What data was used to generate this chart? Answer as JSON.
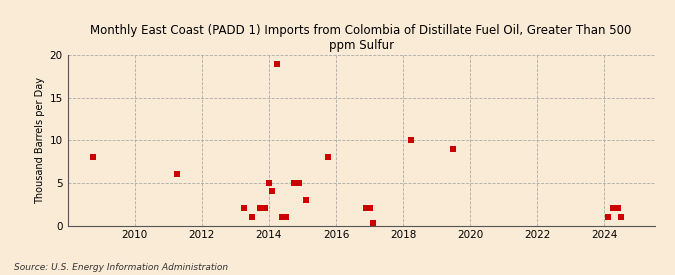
{
  "title": "Monthly East Coast (PADD 1) Imports from Colombia of Distillate Fuel Oil, Greater Than 500\nppm Sulfur",
  "ylabel": "Thousand Barrels per Day",
  "source": "Source: U.S. Energy Information Administration",
  "background_color": "#faebd7",
  "plot_bg_color": "#faebd7",
  "marker_color": "#cc0000",
  "ylim": [
    0,
    20
  ],
  "yticks": [
    0,
    5,
    10,
    15,
    20
  ],
  "xlim": [
    2008.0,
    2025.5
  ],
  "xticks": [
    2010,
    2012,
    2014,
    2016,
    2018,
    2020,
    2022,
    2024
  ],
  "data_points": [
    [
      2008.75,
      8
    ],
    [
      2011.25,
      6
    ],
    [
      2013.25,
      2
    ],
    [
      2013.5,
      1
    ],
    [
      2013.75,
      2
    ],
    [
      2013.9,
      2
    ],
    [
      2014.0,
      5
    ],
    [
      2014.1,
      4
    ],
    [
      2014.25,
      19
    ],
    [
      2014.4,
      1
    ],
    [
      2014.5,
      1
    ],
    [
      2014.75,
      5
    ],
    [
      2014.9,
      5
    ],
    [
      2015.1,
      3
    ],
    [
      2015.75,
      8
    ],
    [
      2016.9,
      2
    ],
    [
      2017.0,
      2
    ],
    [
      2017.1,
      0.3
    ],
    [
      2018.25,
      10
    ],
    [
      2019.5,
      9
    ],
    [
      2024.1,
      1
    ],
    [
      2024.25,
      2
    ],
    [
      2024.4,
      2
    ],
    [
      2024.5,
      1
    ]
  ]
}
